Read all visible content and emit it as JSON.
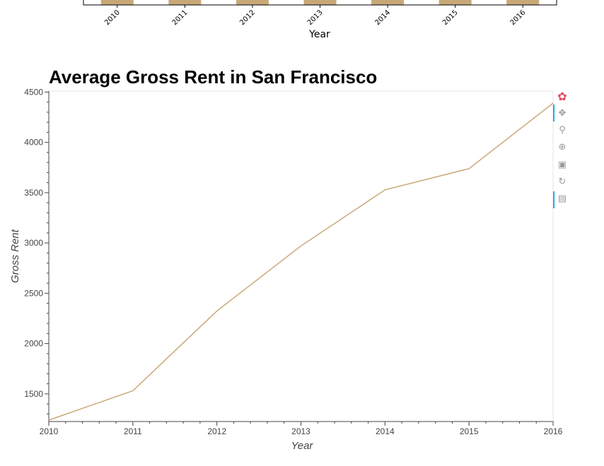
{
  "top_chart": {
    "categories": [
      "2010",
      "2011",
      "2012",
      "2013",
      "2014",
      "2015",
      "2016"
    ],
    "xlabel": "Year",
    "bar_color": "#c9a877"
  },
  "main_chart": {
    "title": "Average Gross Rent in San Francisco",
    "xlabel": "Year",
    "ylabel": "Gross Rent",
    "line_color": "#c9a877"
  },
  "chart_data": [
    {
      "type": "bar",
      "categories": [
        "2010",
        "2011",
        "2012",
        "2013",
        "2014",
        "2015",
        "2016"
      ],
      "xlabel": "Year",
      "note_visible": "only bottom of bars and x-axis visible"
    },
    {
      "type": "line",
      "title": "Average Gross Rent in San Francisco",
      "xlabel": "Year",
      "ylabel": "Gross Rent",
      "x": [
        2010,
        2011,
        2012,
        2013,
        2014,
        2015,
        2016
      ],
      "series": [
        {
          "values": [
            1239,
            1530,
            2324,
            2971,
            3528,
            3739,
            4390
          ]
        }
      ],
      "xlim": [
        2010,
        2016
      ],
      "ylim": [
        1225,
        4510
      ],
      "yticks": [
        1500,
        2000,
        2500,
        3000,
        3500,
        4000,
        4500
      ],
      "xticks": [
        2010,
        2011,
        2012,
        2013,
        2014,
        2015,
        2016
      ],
      "grid": false
    }
  ],
  "toolbar": {
    "items": [
      {
        "name": "bokeh-logo-icon",
        "glyph": "✿",
        "color": "#e8455d"
      },
      {
        "name": "pan-icon",
        "glyph": "✥"
      },
      {
        "name": "box-zoom-icon",
        "glyph": "⚲"
      },
      {
        "name": "wheel-zoom-icon",
        "glyph": "⊕"
      },
      {
        "name": "save-icon",
        "glyph": "▣"
      },
      {
        "name": "reset-icon",
        "glyph": "↻"
      },
      {
        "name": "hover-icon",
        "glyph": "▤"
      }
    ]
  }
}
